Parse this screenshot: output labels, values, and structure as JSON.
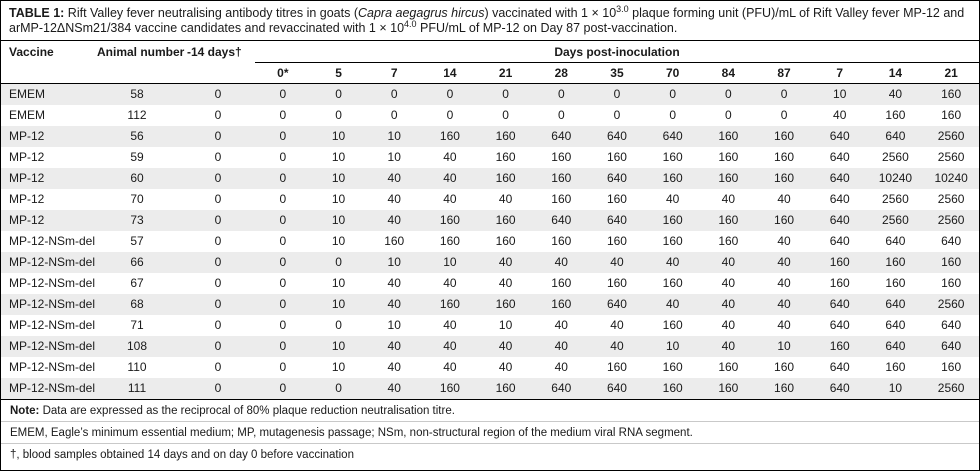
{
  "title": {
    "label": "TABLE 1:",
    "part1": " Rift Valley fever neutralising antibody titres in goats (",
    "species": "Capra aegagrus hircus",
    "part2": ") vaccinated with 1 × 10",
    "sup1": "3.0",
    "part3": " plaque forming unit (PFU)/mL of Rift Valley fever MP-12 and arMP-12ΔNSm21/384 vaccine candidates and revaccinated with 1 × 10",
    "sup2": "4.0",
    "part4": " PFU/mL of MP-12 on Day 87 post-vaccination."
  },
  "table": {
    "headers": {
      "vaccine": "Vaccine",
      "animal_number": "Animal number",
      "minus14": "-14 days†",
      "days_group": "Days post-inoculation",
      "day_columns": [
        "0*",
        "5",
        "7",
        "14",
        "21",
        "28",
        "35",
        "70",
        "84",
        "87",
        "7",
        "14",
        "21"
      ]
    },
    "rows": [
      {
        "vaccine": "EMEM",
        "animal": "58",
        "minus14": "0",
        "days": [
          "0",
          "0",
          "0",
          "0",
          "0",
          "0",
          "0",
          "0",
          "0",
          "0",
          "10",
          "40",
          "160"
        ]
      },
      {
        "vaccine": "EMEM",
        "animal": "112",
        "minus14": "0",
        "days": [
          "0",
          "0",
          "0",
          "0",
          "0",
          "0",
          "0",
          "0",
          "0",
          "0",
          "40",
          "160",
          "160"
        ]
      },
      {
        "vaccine": "MP-12",
        "animal": "56",
        "minus14": "0",
        "days": [
          "0",
          "10",
          "10",
          "160",
          "160",
          "640",
          "640",
          "640",
          "160",
          "160",
          "640",
          "640",
          "2560"
        ]
      },
      {
        "vaccine": "MP-12",
        "animal": "59",
        "minus14": "0",
        "days": [
          "0",
          "10",
          "10",
          "40",
          "160",
          "160",
          "160",
          "160",
          "160",
          "160",
          "640",
          "2560",
          "2560"
        ]
      },
      {
        "vaccine": "MP-12",
        "animal": "60",
        "minus14": "0",
        "days": [
          "0",
          "10",
          "40",
          "40",
          "160",
          "160",
          "640",
          "160",
          "160",
          "160",
          "640",
          "10240",
          "10240"
        ]
      },
      {
        "vaccine": "MP-12",
        "animal": "70",
        "minus14": "0",
        "days": [
          "0",
          "10",
          "40",
          "40",
          "40",
          "160",
          "160",
          "40",
          "40",
          "40",
          "640",
          "2560",
          "2560"
        ]
      },
      {
        "vaccine": "MP-12",
        "animal": "73",
        "minus14": "0",
        "days": [
          "0",
          "10",
          "40",
          "160",
          "160",
          "640",
          "640",
          "160",
          "160",
          "160",
          "640",
          "2560",
          "2560"
        ]
      },
      {
        "vaccine": "MP-12-NSm-del",
        "animal": "57",
        "minus14": "0",
        "days": [
          "0",
          "10",
          "160",
          "160",
          "160",
          "160",
          "160",
          "160",
          "160",
          "40",
          "640",
          "640",
          "640"
        ]
      },
      {
        "vaccine": "MP-12-NSm-del",
        "animal": "66",
        "minus14": "0",
        "days": [
          "0",
          "0",
          "10",
          "10",
          "40",
          "40",
          "40",
          "40",
          "40",
          "40",
          "160",
          "160",
          "160"
        ]
      },
      {
        "vaccine": "MP-12-NSm-del",
        "animal": "67",
        "minus14": "0",
        "days": [
          "0",
          "10",
          "40",
          "40",
          "40",
          "160",
          "160",
          "160",
          "40",
          "40",
          "160",
          "160",
          "160"
        ]
      },
      {
        "vaccine": "MP-12-NSm-del",
        "animal": "68",
        "minus14": "0",
        "days": [
          "0",
          "10",
          "40",
          "160",
          "160",
          "160",
          "640",
          "40",
          "40",
          "40",
          "640",
          "640",
          "2560"
        ]
      },
      {
        "vaccine": "MP-12-NSm-del",
        "animal": "71",
        "minus14": "0",
        "days": [
          "0",
          "0",
          "10",
          "40",
          "10",
          "40",
          "40",
          "160",
          "40",
          "40",
          "640",
          "640",
          "640"
        ]
      },
      {
        "vaccine": "MP-12-NSm-del",
        "animal": "108",
        "minus14": "0",
        "days": [
          "0",
          "10",
          "40",
          "40",
          "40",
          "40",
          "40",
          "10",
          "40",
          "10",
          "160",
          "640",
          "640"
        ]
      },
      {
        "vaccine": "MP-12-NSm-del",
        "animal": "110",
        "minus14": "0",
        "days": [
          "0",
          "10",
          "40",
          "40",
          "40",
          "40",
          "160",
          "160",
          "160",
          "160",
          "640",
          "160",
          "160"
        ]
      },
      {
        "vaccine": "MP-12-NSm-del",
        "animal": "111",
        "minus14": "0",
        "days": [
          "0",
          "0",
          "40",
          "160",
          "160",
          "640",
          "640",
          "160",
          "160",
          "160",
          "640",
          "10",
          "2560"
        ]
      }
    ]
  },
  "notes": {
    "note1_label": "Note:",
    "note1_text": "Data are expressed as the reciprocal of 80% plaque reduction neutralisation titre.",
    "note2": "EMEM, Eagle’s minimum essential medium; MP, mutagenesis passage; NSm, non-structural region of the medium viral RNA segment.",
    "note3": "†, blood samples obtained 14 days and on day 0 before vaccination"
  },
  "colors": {
    "row_shade": "#ececec",
    "border": "#000000",
    "note_divider": "#c9c9c9"
  }
}
